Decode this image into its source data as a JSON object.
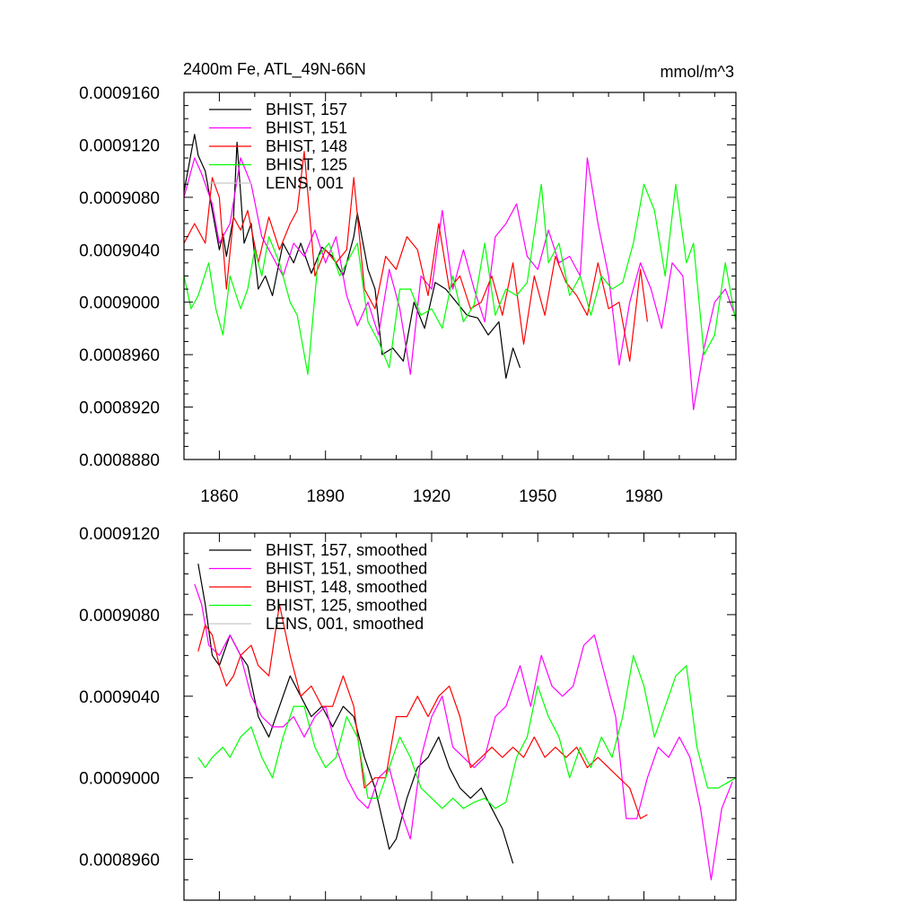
{
  "chart_data": [
    {
      "type": "line",
      "title_left": "2400m Fe, ATL_49N-66N",
      "title_right": "mmol/m^3",
      "xlim": [
        1850,
        2006
      ],
      "ylim": [
        0.000888,
        0.000916
      ],
      "x_ticks": [
        1860,
        1890,
        1920,
        1950,
        1980
      ],
      "y_ticks": [
        "0.0008880",
        "0.0008920",
        "0.0008960",
        "0.0009000",
        "0.0009040",
        "0.0009080",
        "0.0009120",
        "0.0009160"
      ],
      "y_tick_values": [
        0.000888,
        0.000892,
        0.000896,
        0.0009,
        0.000904,
        0.000908,
        0.000912,
        0.000916
      ],
      "legend_position": "top-left",
      "series": [
        {
          "name": "BHIST, 157",
          "color": "#000000",
          "x": [
            1850,
            1853,
            1854,
            1856,
            1858,
            1860,
            1861,
            1862,
            1864,
            1865,
            1867,
            1869,
            1871,
            1873,
            1875,
            1878,
            1881,
            1883,
            1886,
            1889,
            1892,
            1895,
            1898,
            1899,
            1902,
            1904,
            1906,
            1909,
            1912,
            1915,
            1918,
            1921,
            1924,
            1927,
            1930,
            1933,
            1936,
            1939,
            1941,
            1943,
            1945
          ],
          "y": [
            0.0009084,
            0.0009128,
            0.0009112,
            0.00091,
            0.000907,
            0.000904,
            0.0009052,
            0.0009035,
            0.0009065,
            0.0009122,
            0.0009045,
            0.000906,
            0.000901,
            0.000902,
            0.0009005,
            0.0009045,
            0.000903,
            0.0009045,
            0.0009022,
            0.0009042,
            0.0009035,
            0.000902,
            0.000905,
            0.0009068,
            0.0009025,
            0.000901,
            0.000896,
            0.0008965,
            0.0008955,
            0.0009,
            0.000898,
            0.0009015,
            0.000901,
            0.0009,
            0.000899,
            0.0008988,
            0.0008975,
            0.0008985,
            0.0008942,
            0.0008965,
            0.000895
          ]
        },
        {
          "name": "BHIST, 151",
          "color": "#ff00ff",
          "x": [
            1850,
            1853,
            1855,
            1858,
            1860,
            1863,
            1866,
            1869,
            1872,
            1875,
            1878,
            1881,
            1884,
            1887,
            1890,
            1893,
            1896,
            1899,
            1902,
            1905,
            1908,
            1911,
            1914,
            1917,
            1920,
            1923,
            1926,
            1929,
            1932,
            1935,
            1938,
            1941,
            1944,
            1947,
            1950,
            1953,
            1956,
            1959,
            1962,
            1964,
            1967,
            1970,
            1973,
            1976,
            1979,
            1982,
            1985,
            1988,
            1991,
            1994,
            1997,
            2000,
            2003,
            2006
          ],
          "y": [
            0.000908,
            0.000911,
            0.0009098,
            0.0009075,
            0.0009045,
            0.000906,
            0.000911,
            0.000909,
            0.000905,
            0.0009035,
            0.000902,
            0.0009045,
            0.0009035,
            0.0009055,
            0.000903,
            0.000905,
            0.0009005,
            0.0008982,
            0.0009,
            0.0008975,
            0.0009025,
            0.0008995,
            0.0008945,
            0.000902,
            0.000901,
            0.000907,
            0.000901,
            0.000904,
            0.000901,
            0.0008985,
            0.000905,
            0.000906,
            0.0009075,
            0.0009035,
            0.0009025,
            0.0009055,
            0.000903,
            0.0009035,
            0.000902,
            0.000911,
            0.000906,
            0.000902,
            0.0008952,
            0.0009,
            0.000903,
            0.000901,
            0.000898,
            0.000903,
            0.000902,
            0.0008918,
            0.0008965,
            0.0009,
            0.000901,
            0.0008988
          ]
        },
        {
          "name": "BHIST, 148",
          "color": "#ff0000",
          "x": [
            1850,
            1853,
            1856,
            1858,
            1860,
            1862,
            1864,
            1866,
            1868,
            1871,
            1874,
            1877,
            1880,
            1882,
            1884,
            1887,
            1890,
            1893,
            1896,
            1898,
            1901,
            1904,
            1907,
            1910,
            1913,
            1916,
            1919,
            1922,
            1925,
            1928,
            1931,
            1934,
            1937,
            1940,
            1943,
            1946,
            1949,
            1952,
            1955,
            1958,
            1961,
            1964,
            1967,
            1970,
            1973,
            1976,
            1979,
            1981
          ],
          "y": [
            0.0009045,
            0.000906,
            0.0009045,
            0.0009095,
            0.000908,
            0.000901,
            0.0009065,
            0.0009055,
            0.000907,
            0.000903,
            0.0009065,
            0.000904,
            0.000906,
            0.000907,
            0.0009115,
            0.000902,
            0.000904,
            0.000903,
            0.000904,
            0.0009095,
            0.000901,
            0.0008995,
            0.0009035,
            0.0009025,
            0.000905,
            0.000904,
            0.0009005,
            0.000906,
            0.000901,
            0.000902,
            0.0008995,
            0.0009,
            0.000902,
            0.000899,
            0.000903,
            0.0008968,
            0.000902,
            0.000899,
            0.0009035,
            0.0009015,
            0.0009005,
            0.000899,
            0.000903,
            0.0008995,
            0.0009,
            0.0008955,
            0.0009025,
            0.0008985
          ]
        },
        {
          "name": "BHIST, 125",
          "color": "#00ff00",
          "x": [
            1850,
            1852,
            1854,
            1857,
            1859,
            1861,
            1863,
            1866,
            1868,
            1870,
            1872,
            1874,
            1877,
            1880,
            1882,
            1885,
            1888,
            1891,
            1894,
            1896,
            1899,
            1902,
            1905,
            1908,
            1911,
            1914,
            1917,
            1920,
            1923,
            1926,
            1929,
            1932,
            1935,
            1938,
            1941,
            1944,
            1947,
            1951,
            1953,
            1956,
            1959,
            1962,
            1965,
            1968,
            1971,
            1974,
            1977,
            1980,
            1983,
            1986,
            1989,
            1992,
            1994,
            1997,
            2000,
            2003,
            2006
          ],
          "y": [
            0.000902,
            0.0008995,
            0.0009005,
            0.000903,
            0.0008995,
            0.0008975,
            0.000902,
            0.0008995,
            0.000901,
            0.000904,
            0.000902,
            0.000905,
            0.000903,
            0.0009,
            0.000899,
            0.0008945,
            0.0009035,
            0.0009045,
            0.000902,
            0.000903,
            0.0009045,
            0.0008985,
            0.000897,
            0.000895,
            0.000901,
            0.000901,
            0.000899,
            0.0008995,
            0.000898,
            0.000902,
            0.0008985,
            0.0008998,
            0.0009045,
            0.000899,
            0.000901,
            0.0009005,
            0.0009015,
            0.000909,
            0.000903,
            0.0009045,
            0.0009005,
            0.000902,
            0.000899,
            0.000902,
            0.000901,
            0.0009015,
            0.0009045,
            0.000909,
            0.000907,
            0.000902,
            0.000909,
            0.000903,
            0.0009045,
            0.000896,
            0.0008975,
            0.000903,
            0.0008985
          ]
        },
        {
          "name": "LENS, 001",
          "color": "#c8c8c8",
          "x": [],
          "y": []
        }
      ]
    },
    {
      "type": "line",
      "xlim": [
        1850,
        2006
      ],
      "ylim": [
        0.000894,
        0.000912
      ],
      "y_ticks": [
        "0.0008960",
        "0.0009000",
        "0.0009040",
        "0.0009080",
        "0.0009120"
      ],
      "y_tick_values": [
        0.000896,
        0.0009,
        0.000904,
        0.000908,
        0.000912
      ],
      "legend_position": "top-left",
      "series": [
        {
          "name": "BHIST, 157, smoothed",
          "color": "#000000",
          "x": [
            1854,
            1856,
            1858,
            1860,
            1863,
            1866,
            1868,
            1871,
            1874,
            1877,
            1880,
            1883,
            1886,
            1889,
            1892,
            1895,
            1898,
            1901,
            1904,
            1906,
            1908,
            1910,
            1913,
            1916,
            1919,
            1922,
            1925,
            1928,
            1931,
            1934,
            1937,
            1940,
            1943
          ],
          "y": [
            0.0009105,
            0.0009085,
            0.000906,
            0.0009055,
            0.000907,
            0.000906,
            0.0009055,
            0.000903,
            0.000902,
            0.0009035,
            0.000905,
            0.000904,
            0.000903,
            0.0009035,
            0.0009025,
            0.0009035,
            0.000903,
            0.000901,
            0.0008995,
            0.000898,
            0.0008965,
            0.000897,
            0.000899,
            0.0009005,
            0.000901,
            0.000902,
            0.0009005,
            0.0008995,
            0.000899,
            0.0008995,
            0.0008985,
            0.0008975,
            0.0008958
          ]
        },
        {
          "name": "BHIST, 151, smoothed",
          "color": "#ff00ff",
          "x": [
            1853,
            1855,
            1857,
            1860,
            1863,
            1866,
            1869,
            1872,
            1875,
            1878,
            1881,
            1884,
            1887,
            1890,
            1893,
            1896,
            1899,
            1902,
            1905,
            1908,
            1911,
            1914,
            1917,
            1920,
            1923,
            1926,
            1929,
            1932,
            1935,
            1938,
            1941,
            1945,
            1948,
            1951,
            1954,
            1957,
            1960,
            1963,
            1966,
            1969,
            1972,
            1975,
            1978,
            1981,
            1984,
            1987,
            1990,
            1993,
            1996,
            1999,
            2002,
            2005
          ],
          "y": [
            0.0009095,
            0.0009085,
            0.0009065,
            0.000906,
            0.000907,
            0.000906,
            0.000904,
            0.000903,
            0.0009025,
            0.0009025,
            0.000903,
            0.000902,
            0.000903,
            0.0009035,
            0.0009015,
            0.0009,
            0.000899,
            0.0008985,
            0.0009,
            0.0009005,
            0.0008985,
            0.000897,
            0.000901,
            0.000903,
            0.000904,
            0.0009015,
            0.000901,
            0.0009005,
            0.000901,
            0.000903,
            0.0009035,
            0.0009055,
            0.0009035,
            0.000906,
            0.0009045,
            0.000904,
            0.0009045,
            0.0009065,
            0.000907,
            0.000905,
            0.000903,
            0.000898,
            0.000898,
            0.0009,
            0.0009015,
            0.000901,
            0.000902,
            0.000901,
            0.0008985,
            0.000895,
            0.0008985,
            0.0008998
          ]
        },
        {
          "name": "BHIST, 148, smoothed",
          "color": "#ff0000",
          "x": [
            1854,
            1856,
            1858,
            1860,
            1862,
            1864,
            1866,
            1869,
            1871,
            1874,
            1877,
            1880,
            1883,
            1886,
            1889,
            1892,
            1895,
            1898,
            1901,
            1904,
            1907,
            1910,
            1913,
            1916,
            1919,
            1922,
            1925,
            1928,
            1931,
            1934,
            1937,
            1940,
            1943,
            1946,
            1949,
            1952,
            1955,
            1958,
            1961,
            1964,
            1967,
            1970,
            1973,
            1976,
            1979,
            1981
          ],
          "y": [
            0.0009062,
            0.0009075,
            0.000907,
            0.0009055,
            0.0009045,
            0.000905,
            0.000906,
            0.0009065,
            0.0009055,
            0.000905,
            0.0009085,
            0.000906,
            0.000904,
            0.0009045,
            0.0009035,
            0.0009035,
            0.000905,
            0.0009035,
            0.0008995,
            0.0009,
            0.0009,
            0.000903,
            0.000903,
            0.000904,
            0.000903,
            0.000904,
            0.0009045,
            0.000903,
            0.0009005,
            0.000901,
            0.0009015,
            0.000901,
            0.0009015,
            0.000901,
            0.000902,
            0.000901,
            0.0009015,
            0.000901,
            0.0009015,
            0.0009005,
            0.000901,
            0.0009005,
            0.0009,
            0.0008995,
            0.000898,
            0.0008982
          ]
        },
        {
          "name": "BHIST, 125, smoothed",
          "color": "#00ff00",
          "x": [
            1854,
            1856,
            1858,
            1861,
            1863,
            1866,
            1869,
            1872,
            1875,
            1878,
            1881,
            1884,
            1887,
            1890,
            1893,
            1896,
            1899,
            1902,
            1905,
            1908,
            1911,
            1914,
            1917,
            1920,
            1923,
            1926,
            1929,
            1932,
            1935,
            1938,
            1941,
            1944,
            1947,
            1950,
            1953,
            1956,
            1959,
            1962,
            1965,
            1968,
            1971,
            1974,
            1977,
            1980,
            1983,
            1986,
            1989,
            1992,
            1995,
            1998,
            2001,
            2004,
            2006
          ],
          "y": [
            0.000901,
            0.0009005,
            0.000901,
            0.0009015,
            0.000901,
            0.000902,
            0.0009025,
            0.000901,
            0.0009,
            0.000902,
            0.0009035,
            0.0009035,
            0.0009015,
            0.0009005,
            0.000901,
            0.000903,
            0.000902,
            0.000899,
            0.000899,
            0.0009005,
            0.000902,
            0.000901,
            0.0008995,
            0.000899,
            0.0008985,
            0.000899,
            0.0008985,
            0.0008988,
            0.000899,
            0.0008985,
            0.0008988,
            0.000901,
            0.000902,
            0.0009045,
            0.000903,
            0.000902,
            0.0009,
            0.0009015,
            0.0009005,
            0.000902,
            0.000901,
            0.000903,
            0.000906,
            0.0009045,
            0.000902,
            0.0009035,
            0.000905,
            0.0009055,
            0.0009015,
            0.0008995,
            0.0008995,
            0.0008998,
            0.0009
          ]
        },
        {
          "name": "LENS, 001, smoothed",
          "color": "#c8c8c8",
          "x": [],
          "y": []
        }
      ]
    }
  ]
}
